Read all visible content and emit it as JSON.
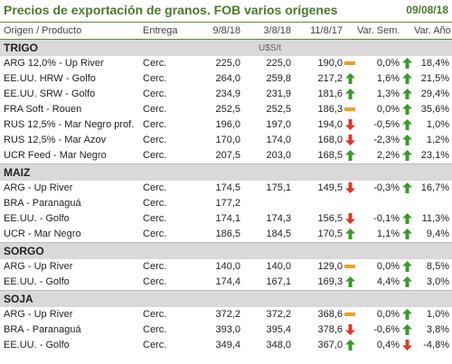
{
  "header": {
    "title": "Precios de exportación de granos. FOB varios orígenes",
    "date": "09/08/18"
  },
  "columns": {
    "product": "Origen / Producto",
    "delivery": "Entrega",
    "d1": "9/8/18",
    "d2": "3/8/18",
    "d3": "11/8/17",
    "var_week": "Var. Sem.",
    "var_year": "Var. Año"
  },
  "colors": {
    "up": "#3a9a2a",
    "down": "#d83a2a",
    "flat": "#f0a020",
    "accent": "#4a7a2c"
  },
  "sections": [
    {
      "name": "TRIGO",
      "unit": "U$S/t",
      "rows": [
        {
          "product": "ARG 12,0% - Up River",
          "delivery": "Cerc.",
          "d1": "225,0",
          "d2": "225,0",
          "d3": "190,0",
          "ind_week": "flat",
          "var_week": "0,0%",
          "ind_year": "up",
          "var_year": "18,4%"
        },
        {
          "product": "EE.UU. HRW - Golfo",
          "delivery": "Cerc.",
          "d1": "264,0",
          "d2": "259,8",
          "d3": "217,2",
          "ind_week": "up",
          "var_week": "1,6%",
          "ind_year": "up",
          "var_year": "21,5%"
        },
        {
          "product": "EE.UU. SRW - Golfo",
          "delivery": "Cerc.",
          "d1": "234,9",
          "d2": "231,9",
          "d3": "181,6",
          "ind_week": "up",
          "var_week": "1,3%",
          "ind_year": "up",
          "var_year": "29,4%"
        },
        {
          "product": "FRA Soft - Rouen",
          "delivery": "Cerc.",
          "d1": "252,5",
          "d2": "252,5",
          "d3": "186,3",
          "ind_week": "flat",
          "var_week": "0,0%",
          "ind_year": "up",
          "var_year": "35,6%"
        },
        {
          "product": "RUS 12,5% - Mar Negro prof.",
          "delivery": "Cerc.",
          "d1": "196,0",
          "d2": "197,0",
          "d3": "194,0",
          "ind_week": "down",
          "var_week": "-0,5%",
          "ind_year": "up",
          "var_year": "1,0%"
        },
        {
          "product": "RUS 12,5% - Mar Azov",
          "delivery": "Cerc.",
          "d1": "170,0",
          "d2": "174,0",
          "d3": "168,0",
          "ind_week": "down",
          "var_week": "-2,3%",
          "ind_year": "up",
          "var_year": "1,2%"
        },
        {
          "product": "UCR Feed - Mar Negro",
          "delivery": "Cerc.",
          "d1": "207,5",
          "d2": "203,0",
          "d3": "168,5",
          "ind_week": "up",
          "var_week": "2,2%",
          "ind_year": "up",
          "var_year": "23,1%"
        }
      ]
    },
    {
      "name": "MAIZ",
      "unit": "",
      "rows": [
        {
          "product": "ARG - Up River",
          "delivery": "Cerc.",
          "d1": "174,5",
          "d2": "175,1",
          "d3": "149,5",
          "ind_week": "down",
          "var_week": "-0,3%",
          "ind_year": "up",
          "var_year": "16,7%"
        },
        {
          "product": "BRA - Paranaguá",
          "delivery": "Cerc.",
          "d1": "177,2",
          "d2": "",
          "d3": "",
          "ind_week": "",
          "var_week": "",
          "ind_year": "",
          "var_year": ""
        },
        {
          "product": "EE.UU. - Golfo",
          "delivery": "Cerc.",
          "d1": "174,1",
          "d2": "174,3",
          "d3": "156,5",
          "ind_week": "down",
          "var_week": "-0,1%",
          "ind_year": "up",
          "var_year": "11,3%"
        },
        {
          "product": "UCR - Mar Negro",
          "delivery": "Cerc.",
          "d1": "186,5",
          "d2": "184,5",
          "d3": "170,5",
          "ind_week": "up",
          "var_week": "1,1%",
          "ind_year": "up",
          "var_year": "9,4%"
        }
      ]
    },
    {
      "name": "SORGO",
      "unit": "",
      "rows": [
        {
          "product": "ARG - Up River",
          "delivery": "Cerc.",
          "d1": "140,0",
          "d2": "140,0",
          "d3": "129,0",
          "ind_week": "flat",
          "var_week": "0,0%",
          "ind_year": "up",
          "var_year": "8,5%"
        },
        {
          "product": "EE.UU. - Golfo",
          "delivery": "Cerc.",
          "d1": "174,4",
          "d2": "167,1",
          "d3": "169,3",
          "ind_week": "up",
          "var_week": "4,4%",
          "ind_year": "up",
          "var_year": "3,0%"
        }
      ]
    },
    {
      "name": "SOJA",
      "unit": "",
      "rows": [
        {
          "product": "ARG - Up River",
          "delivery": "Cerc.",
          "d1": "372,2",
          "d2": "372,2",
          "d3": "368,6",
          "ind_week": "flat",
          "var_week": "0,0%",
          "ind_year": "up",
          "var_year": "1,0%"
        },
        {
          "product": "BRA - Paranaguá",
          "delivery": "Cerc.",
          "d1": "393,0",
          "d2": "395,4",
          "d3": "378,6",
          "ind_week": "down",
          "var_week": "-0,6%",
          "ind_year": "up",
          "var_year": "3,8%"
        },
        {
          "product": "EE.UU. - Golfo",
          "delivery": "Cerc.",
          "d1": "349,4",
          "d2": "348,0",
          "d3": "367,0",
          "ind_week": "up",
          "var_week": "0,4%",
          "ind_year": "down",
          "var_year": "-4,8%"
        }
      ]
    }
  ]
}
